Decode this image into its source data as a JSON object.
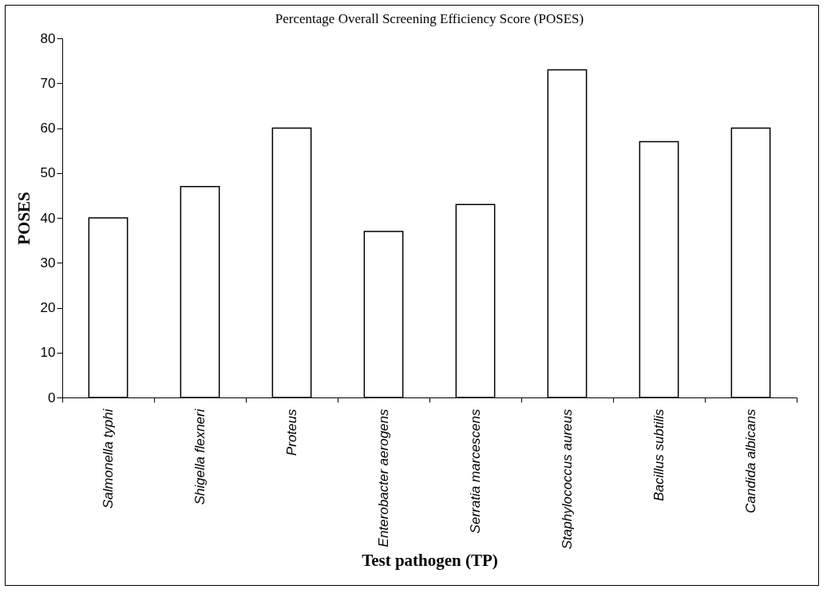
{
  "chart_data": {
    "type": "bar",
    "title": "Percentage Overall Screening Efficiency Score (POSES)",
    "xlabel": "Test pathogen (TP)",
    "ylabel": "POSES",
    "categories": [
      "Salmonella typhi",
      "Shigella flexneri",
      "Proteus",
      "Enterobacter aerogens",
      "Serratia marcescens",
      "Staphylococcus aureus",
      "Bacillus subtilis",
      "Candida albicans"
    ],
    "values": [
      40,
      47,
      60,
      37,
      43,
      73,
      57,
      60
    ],
    "color": "#ffffff",
    "ylim": [
      0,
      80
    ],
    "yticks": [
      0,
      10,
      20,
      30,
      40,
      50,
      60,
      70,
      80
    ],
    "grid": false,
    "legend": false
  }
}
